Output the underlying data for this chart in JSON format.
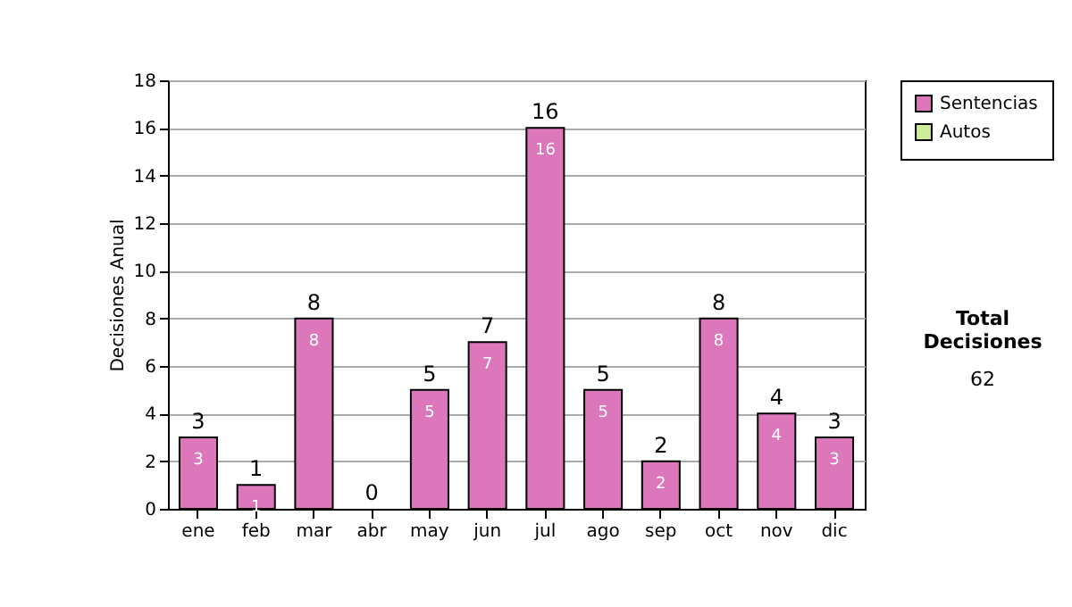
{
  "chart_data": {
    "type": "bar",
    "stacked": true,
    "ylabel": "Decisiones Anual",
    "categories": [
      "ene",
      "feb",
      "mar",
      "abr",
      "may",
      "jun",
      "jul",
      "ago",
      "sep",
      "oct",
      "nov",
      "dic"
    ],
    "series": [
      {
        "name": "Sentencias",
        "color": "#dd77bb",
        "values": [
          3,
          1,
          8,
          0,
          5,
          7,
          16,
          5,
          2,
          8,
          4,
          3
        ],
        "value_labels": [
          "3",
          "1",
          "8",
          null,
          "5",
          "7",
          "16",
          "5",
          "2",
          "8",
          "4",
          "3"
        ]
      },
      {
        "name": "Autos",
        "color": "#ccee99",
        "values": [
          0,
          0,
          0,
          0,
          0,
          0,
          0,
          0,
          0,
          0,
          0,
          0
        ]
      }
    ],
    "totals": [
      "3",
      "1",
      "8",
      "0",
      "5",
      "7",
      "16",
      "5",
      "2",
      "8",
      "4",
      "3"
    ],
    "ylim": [
      0,
      18
    ],
    "yticks": [
      0,
      2,
      4,
      6,
      8,
      10,
      12,
      14,
      16,
      18
    ],
    "grid": "y",
    "legend": "right",
    "annotations": [
      "Total Decisiones",
      "62"
    ]
  }
}
